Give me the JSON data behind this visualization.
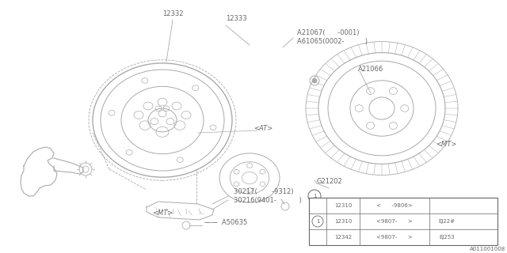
{
  "bg_color": "#ffffff",
  "line_color": "#aaaaaa",
  "text_color": "#666666",
  "watermark": "A011001008",
  "table": {
    "rows": [
      [
        "",
        "12310",
        "<      -9806>",
        ""
      ],
      [
        "1",
        "12310",
        "<9807-      >",
        "EJ22#"
      ],
      [
        "",
        "12342",
        "<9807-      >",
        "EJ253"
      ]
    ]
  }
}
